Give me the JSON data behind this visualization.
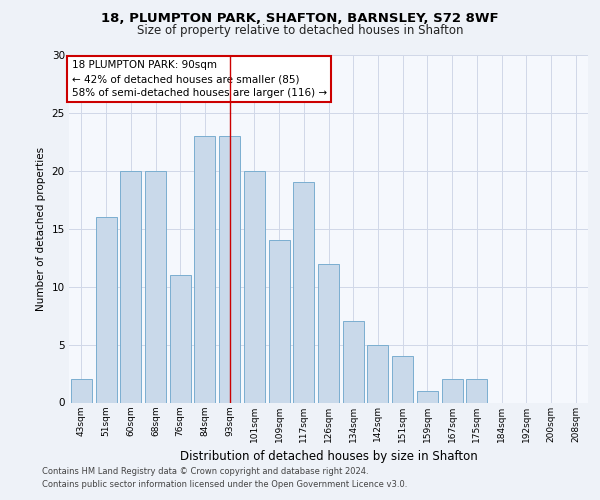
{
  "title1": "18, PLUMPTON PARK, SHAFTON, BARNSLEY, S72 8WF",
  "title2": "Size of property relative to detached houses in Shafton",
  "xlabel": "Distribution of detached houses by size in Shafton",
  "ylabel": "Number of detached properties",
  "categories": [
    "43sqm",
    "51sqm",
    "60sqm",
    "68sqm",
    "76sqm",
    "84sqm",
    "93sqm",
    "101sqm",
    "109sqm",
    "117sqm",
    "126sqm",
    "134sqm",
    "142sqm",
    "151sqm",
    "159sqm",
    "167sqm",
    "175sqm",
    "184sqm",
    "192sqm",
    "200sqm",
    "208sqm"
  ],
  "values": [
    2,
    16,
    20,
    20,
    11,
    23,
    23,
    20,
    14,
    19,
    12,
    7,
    5,
    4,
    1,
    2,
    2,
    0,
    0,
    0,
    0
  ],
  "bar_color": "#c9d9ea",
  "bar_edge_color": "#7aaed0",
  "vline_x": 6,
  "vline_color": "#cc0000",
  "annotation_text": "18 PLUMPTON PARK: 90sqm\n← 42% of detached houses are smaller (85)\n58% of semi-detached houses are larger (116) →",
  "annotation_box_color": "#ffffff",
  "annotation_box_edge": "#cc0000",
  "ylim": [
    0,
    30
  ],
  "yticks": [
    0,
    5,
    10,
    15,
    20,
    25,
    30
  ],
  "footer1": "Contains HM Land Registry data © Crown copyright and database right 2024.",
  "footer2": "Contains public sector information licensed under the Open Government Licence v3.0.",
  "bg_color": "#eef2f8",
  "plot_bg_color": "#f5f8fd",
  "grid_color": "#d0d8e8"
}
